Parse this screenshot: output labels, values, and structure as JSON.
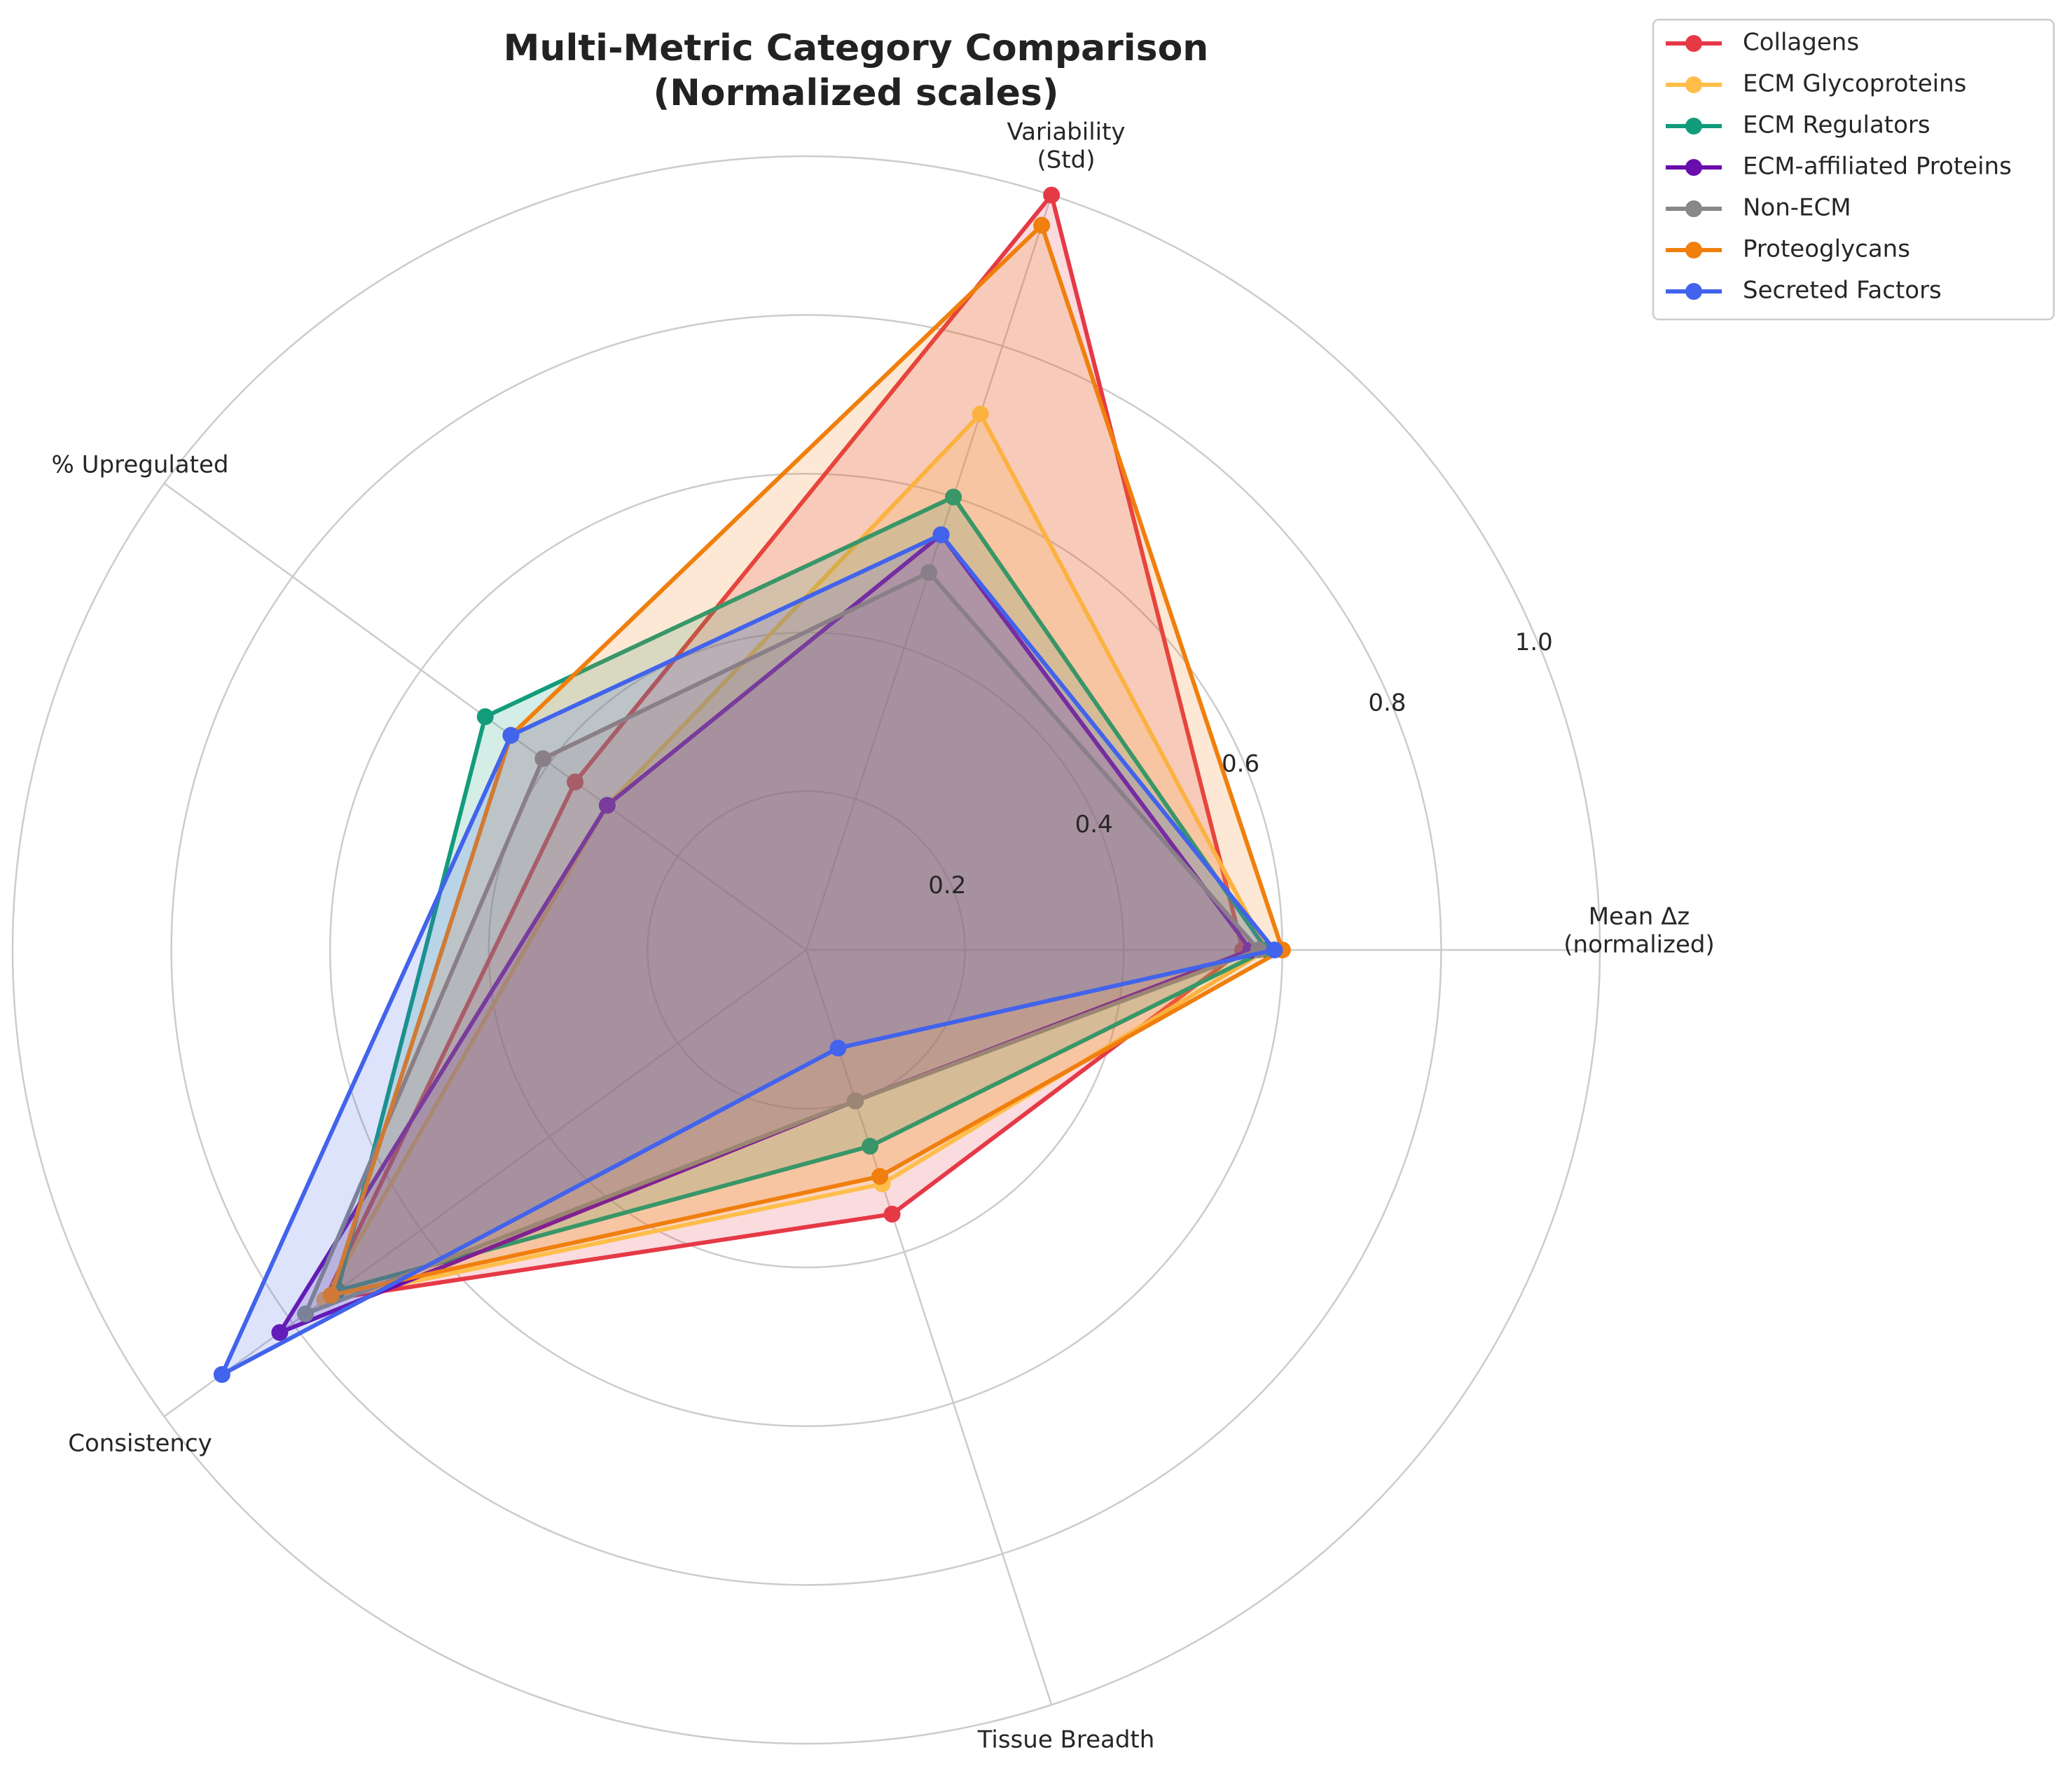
{
  "chart_data": {
    "type": "radar",
    "title": [
      "Multi-Metric Category Comparison",
      "(Normalized scales)"
    ],
    "axes": [
      [
        "Mean Δz",
        "(normalized)"
      ],
      [
        "Variability",
        "(Std)"
      ],
      [
        "% Upregulated"
      ],
      [
        "Consistency"
      ],
      [
        "Tissue Breadth"
      ]
    ],
    "rlim": [
      0,
      1.0
    ],
    "rticks": [
      {
        "value": 0.2,
        "label": "0.2"
      },
      {
        "value": 0.4,
        "label": "0.4"
      },
      {
        "value": 0.6,
        "label": "0.6"
      },
      {
        "value": 0.8,
        "label": "0.8"
      },
      {
        "value": 1.0,
        "label": "1.0"
      }
    ],
    "grid": true,
    "legend_position": "top-right",
    "series": [
      {
        "name": "Collagens",
        "color": "#e63946",
        "values": [
          0.55,
          1.0,
          0.36,
          0.75,
          0.35
        ]
      },
      {
        "name": "ECM Glycoproteins",
        "color": "#ffbe4a",
        "values": [
          0.58,
          0.71,
          0.31,
          0.75,
          0.31
        ]
      },
      {
        "name": "ECM Regulators",
        "color": "#129c7c",
        "values": [
          0.58,
          0.6,
          0.5,
          0.73,
          0.26
        ]
      },
      {
        "name": "ECM-affiliated Proteins",
        "color": "#6a0dad",
        "values": [
          0.56,
          0.55,
          0.31,
          0.82,
          0.2
        ]
      },
      {
        "name": "Non-ECM",
        "color": "#888888",
        "values": [
          0.57,
          0.5,
          0.41,
          0.78,
          0.2
        ]
      },
      {
        "name": "Proteoglycans",
        "color": "#f07f0e",
        "values": [
          0.6,
          0.96,
          0.46,
          0.74,
          0.3
        ]
      },
      {
        "name": "Secreted Factors",
        "color": "#4263eb",
        "values": [
          0.59,
          0.55,
          0.46,
          0.91,
          0.13
        ]
      }
    ]
  }
}
